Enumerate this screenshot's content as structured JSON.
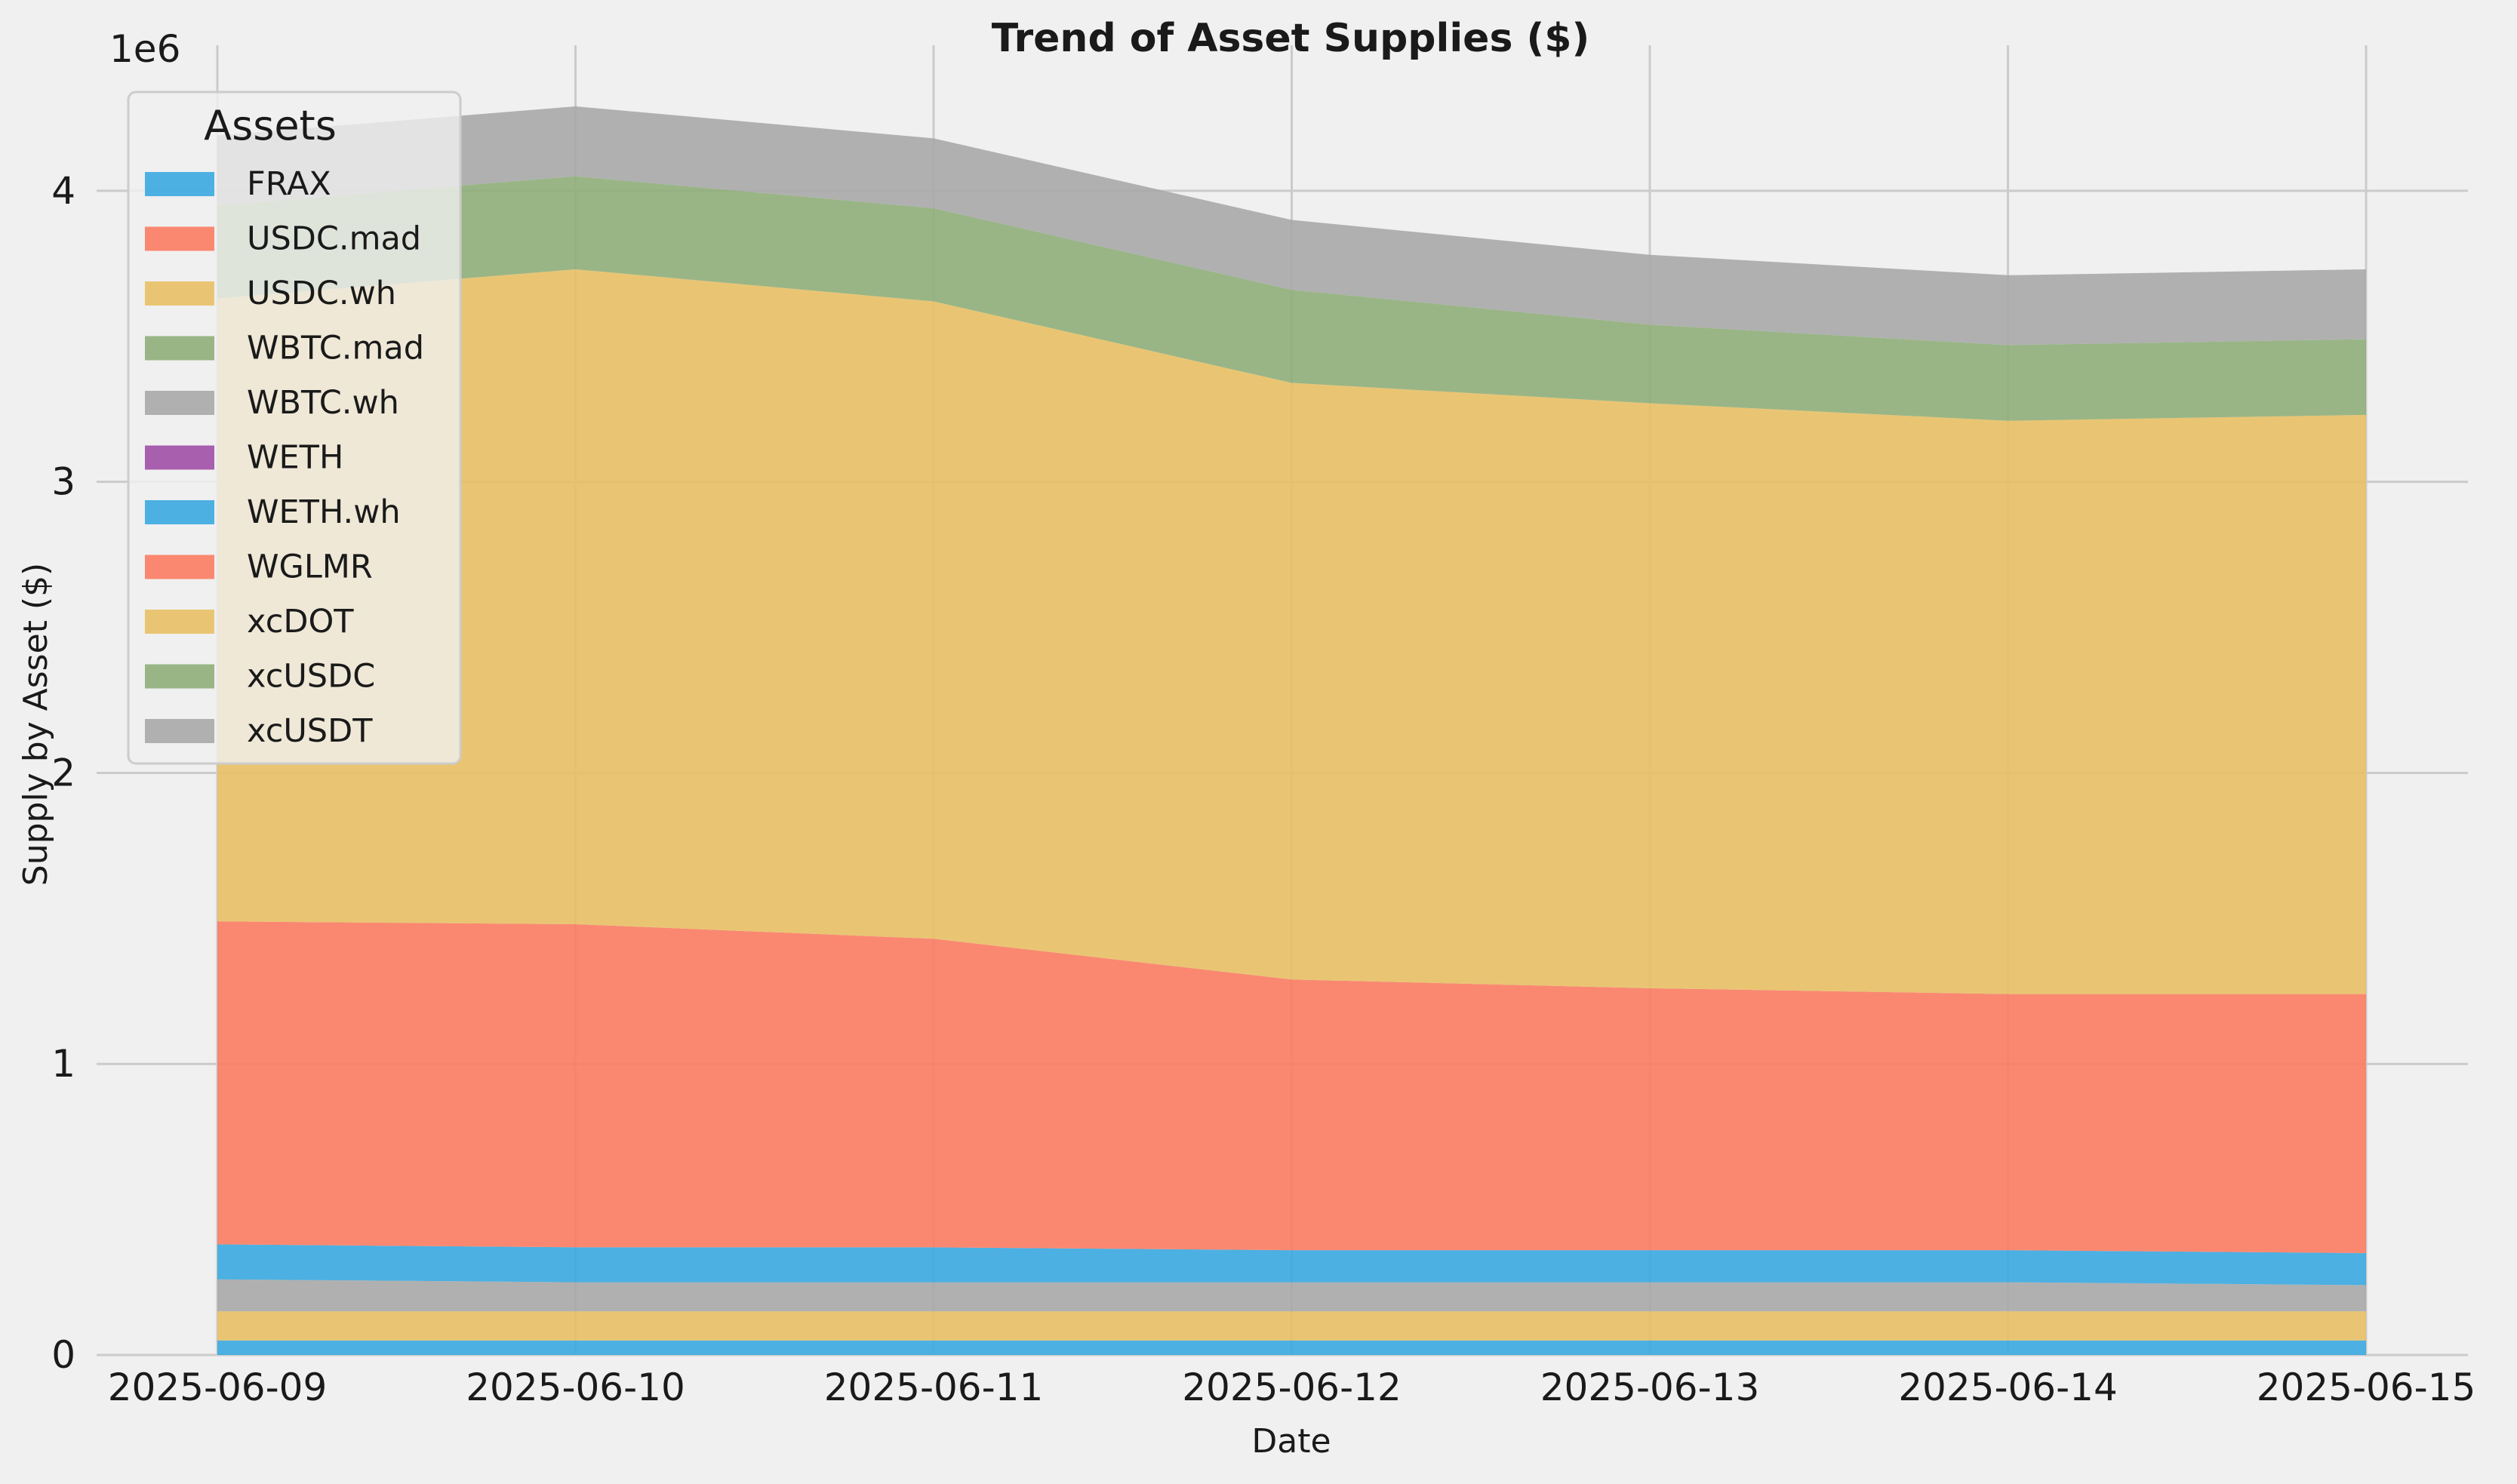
{
  "chart_data": {
    "type": "area",
    "stacked": true,
    "title": "Trend of Asset Supplies ($)",
    "xlabel": "Date",
    "ylabel": "Supply by Asset ($)",
    "y_offset_label": "1e6",
    "x": [
      "2025-06-09",
      "2025-06-10",
      "2025-06-11",
      "2025-06-12",
      "2025-06-13",
      "2025-06-14",
      "2025-06-15"
    ],
    "ylim": [
      0,
      4.5
    ],
    "yticks": [
      0,
      1,
      2,
      3,
      4
    ],
    "ytick_labels": [
      "0",
      "1",
      "2",
      "3",
      "4"
    ],
    "units_note": "values in millions of $",
    "grid": true,
    "legend": {
      "title": "Assets",
      "placement": "top-left"
    },
    "series": [
      {
        "name": "FRAX",
        "color": "#3aa8e0",
        "values": [
          0.05,
          0.05,
          0.05,
          0.05,
          0.05,
          0.05,
          0.05
        ]
      },
      {
        "name": "USDC.mad",
        "color": "#fb7c63",
        "values": [
          0.0,
          0.0,
          0.0,
          0.0,
          0.0,
          0.0,
          0.0
        ]
      },
      {
        "name": "USDC.wh",
        "color": "#e8c065",
        "values": [
          0.1,
          0.1,
          0.1,
          0.1,
          0.1,
          0.1,
          0.1
        ]
      },
      {
        "name": "WBTC.mad",
        "color": "#8fae7a",
        "values": [
          0.0,
          0.0,
          0.0,
          0.0,
          0.0,
          0.0,
          0.0
        ]
      },
      {
        "name": "WBTC.wh",
        "color": "#a9a9a9",
        "values": [
          0.11,
          0.1,
          0.1,
          0.1,
          0.1,
          0.1,
          0.09
        ]
      },
      {
        "name": "WETH",
        "color": "#a04fa6",
        "values": [
          0.0,
          0.0,
          0.0,
          0.0,
          0.0,
          0.0,
          0.0
        ]
      },
      {
        "name": "WETH.wh",
        "color": "#3aa8e0",
        "values": [
          0.12,
          0.12,
          0.12,
          0.11,
          0.11,
          0.11,
          0.11
        ]
      },
      {
        "name": "WGLMR",
        "color": "#fb7c63",
        "values": [
          1.11,
          1.11,
          1.06,
          0.93,
          0.9,
          0.88,
          0.89
        ]
      },
      {
        "name": "xcDOT",
        "color": "#e8c065",
        "values": [
          2.14,
          2.25,
          2.19,
          2.05,
          2.01,
          1.97,
          1.99
        ]
      },
      {
        "name": "xcUSDC",
        "color": "#8fae7a",
        "values": [
          0.32,
          0.32,
          0.32,
          0.32,
          0.27,
          0.26,
          0.26
        ]
      },
      {
        "name": "xcUSDT",
        "color": "#a9a9a9",
        "values": [
          0.24,
          0.24,
          0.24,
          0.24,
          0.24,
          0.24,
          0.24
        ]
      }
    ]
  }
}
